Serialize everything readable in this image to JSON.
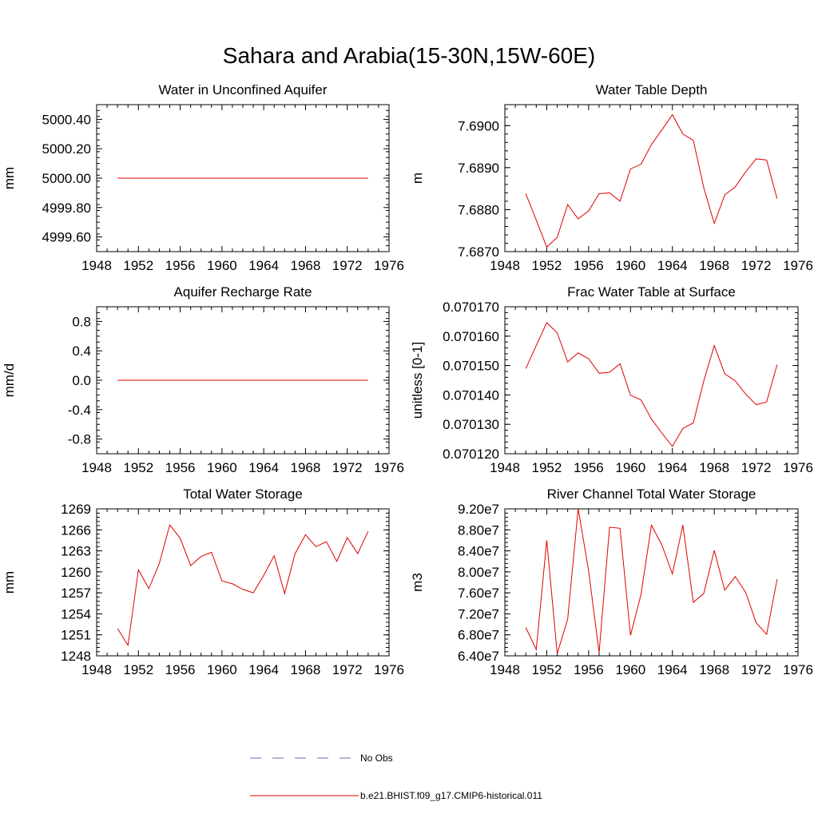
{
  "figure": {
    "title": "Sahara and Arabia(15-30N,15W-60E)"
  },
  "legend": {
    "entries": [
      {
        "name": "No Obs",
        "style": "dashed",
        "color": "#5b6fb0"
      },
      {
        "name": "b.e21.BHIST.f09_g17.CMIP6-historical.011",
        "style": "solid",
        "color": "#e00000"
      }
    ]
  },
  "chart_data": [
    {
      "type": "line",
      "title": "Water in Unconfined Aquifer",
      "ylabel": "mm",
      "xlim": [
        1948,
        1976
      ],
      "ylim": [
        4999.5,
        5000.5
      ],
      "xticks": [
        "1948",
        "1952",
        "1956",
        "1960",
        "1964",
        "1968",
        "1972",
        "1976"
      ],
      "yticks": [
        4999.6,
        4999.8,
        5000.0,
        5000.2,
        5000.4
      ],
      "ytick_labels": [
        "4999.60",
        "4999.80",
        "5000.00",
        "5000.20",
        "5000.40"
      ],
      "series": [
        {
          "color": "#e00000",
          "x": [
            1950,
            1951,
            1952,
            1953,
            1954,
            1955,
            1956,
            1957,
            1958,
            1959,
            1960,
            1961,
            1962,
            1963,
            1964,
            1965,
            1966,
            1967,
            1968,
            1969,
            1970,
            1971,
            1972,
            1973,
            1974
          ],
          "y": [
            5000,
            5000,
            5000,
            5000,
            5000,
            5000,
            5000,
            5000,
            5000,
            5000,
            5000,
            5000,
            5000,
            5000,
            5000,
            5000,
            5000,
            5000,
            5000,
            5000,
            5000,
            5000,
            5000,
            5000,
            5000
          ]
        }
      ]
    },
    {
      "type": "line",
      "title": "Water Table Depth",
      "ylabel": "m",
      "xlim": [
        1948,
        1976
      ],
      "ylim": [
        7.687,
        7.6905
      ],
      "xticks": [
        "1948",
        "1952",
        "1956",
        "1960",
        "1964",
        "1968",
        "1972",
        "1976"
      ],
      "yticks": [
        7.687,
        7.688,
        7.689,
        7.69
      ],
      "ytick_labels": [
        "7.6870",
        "7.6880",
        "7.6890",
        "7.6900"
      ],
      "series": [
        {
          "color": "#e00000",
          "x": [
            1950,
            1951,
            1952,
            1953,
            1954,
            1955,
            1956,
            1957,
            1958,
            1959,
            1960,
            1961,
            1962,
            1963,
            1964,
            1965,
            1966,
            1967,
            1968,
            1969,
            1970,
            1971,
            1972,
            1973,
            1974
          ],
          "y": [
            7.68838,
            7.68775,
            7.68711,
            7.68734,
            7.68812,
            7.68778,
            7.68797,
            7.68838,
            7.6884,
            7.6882,
            7.68897,
            7.68908,
            7.68955,
            7.6899,
            7.69026,
            7.6898,
            7.68965,
            7.68852,
            7.68767,
            7.68835,
            7.68854,
            7.6889,
            7.68921,
            7.68918,
            7.68826
          ]
        }
      ]
    },
    {
      "type": "line",
      "title": "Aquifer Recharge Rate",
      "ylabel": "mm/d",
      "xlim": [
        1948,
        1976
      ],
      "ylim": [
        -1.0,
        1.0
      ],
      "xticks": [
        "1948",
        "1952",
        "1956",
        "1960",
        "1964",
        "1968",
        "1972",
        "1976"
      ],
      "yticks": [
        -0.8,
        -0.4,
        0.0,
        0.4,
        0.8
      ],
      "ytick_labels": [
        "-0.8",
        "-0.4",
        "0.0",
        "0.4",
        "0.8"
      ],
      "series": [
        {
          "color": "#e00000",
          "x": [
            1950,
            1951,
            1952,
            1953,
            1954,
            1955,
            1956,
            1957,
            1958,
            1959,
            1960,
            1961,
            1962,
            1963,
            1964,
            1965,
            1966,
            1967,
            1968,
            1969,
            1970,
            1971,
            1972,
            1973,
            1974
          ],
          "y": [
            0,
            0,
            0,
            0,
            0,
            0,
            0,
            0,
            0,
            0,
            0,
            0,
            0,
            0,
            0,
            0,
            0,
            0,
            0,
            0,
            0,
            0,
            0,
            0,
            0
          ]
        }
      ]
    },
    {
      "type": "line",
      "title": "Frac Water Table at Surface",
      "ylabel": "unitless [0-1]",
      "xlim": [
        1948,
        1976
      ],
      "ylim": [
        0.07012,
        0.07017
      ],
      "xticks": [
        "1948",
        "1952",
        "1956",
        "1960",
        "1964",
        "1968",
        "1972",
        "1976"
      ],
      "yticks": [
        0.07012,
        0.07013,
        0.07014,
        0.07015,
        0.07016,
        0.07017
      ],
      "ytick_labels": [
        "0.070120",
        "0.070130",
        "0.070140",
        "0.070150",
        "0.070160",
        "0.070170"
      ],
      "series": [
        {
          "color": "#e00000",
          "x": [
            1950,
            1951,
            1952,
            1953,
            1954,
            1955,
            1956,
            1957,
            1958,
            1959,
            1960,
            1961,
            1962,
            1963,
            1964,
            1965,
            1966,
            1967,
            1968,
            1969,
            1970,
            1971,
            1972,
            1973,
            1974
          ],
          "y": [
            0.070149,
            0.0701568,
            0.0701646,
            0.0701611,
            0.0701512,
            0.0701543,
            0.0701523,
            0.0701474,
            0.0701477,
            0.0701506,
            0.0701399,
            0.0701383,
            0.0701318,
            0.070127,
            0.0701225,
            0.0701286,
            0.0701305,
            0.0701448,
            0.0701568,
            0.0701472,
            0.0701448,
            0.0701403,
            0.0701367,
            0.0701376,
            0.0701503
          ]
        }
      ]
    },
    {
      "type": "line",
      "title": "Total Water Storage",
      "ylabel": "mm",
      "xlim": [
        1948,
        1976
      ],
      "ylim": [
        1248,
        1269
      ],
      "xticks": [
        "1948",
        "1952",
        "1956",
        "1960",
        "1964",
        "1968",
        "1972",
        "1976"
      ],
      "yticks": [
        1248,
        1251,
        1254,
        1257,
        1260,
        1263,
        1266,
        1269
      ],
      "ytick_labels": [
        "1248",
        "1251",
        "1254",
        "1257",
        "1260",
        "1263",
        "1266",
        "1269"
      ],
      "series": [
        {
          "color": "#e00000",
          "x": [
            1950,
            1951,
            1952,
            1953,
            1954,
            1955,
            1956,
            1957,
            1958,
            1959,
            1960,
            1961,
            1962,
            1963,
            1964,
            1965,
            1966,
            1967,
            1968,
            1969,
            1970,
            1971,
            1972,
            1973,
            1974
          ],
          "y": [
            1251.9,
            1249.5,
            1260.3,
            1257.6,
            1261.2,
            1266.7,
            1264.8,
            1260.9,
            1262.2,
            1262.8,
            1258.7,
            1258.3,
            1257.5,
            1257.0,
            1259.5,
            1262.3,
            1256.9,
            1262.6,
            1265.3,
            1263.6,
            1264.3,
            1261.5,
            1264.9,
            1262.6,
            1265.8
          ]
        }
      ]
    },
    {
      "type": "line",
      "title": "River Channel Total Water Storage",
      "ylabel": "m3",
      "xlim": [
        1948,
        1976
      ],
      "ylim": [
        64000000,
        92000000
      ],
      "xticks": [
        "1948",
        "1952",
        "1956",
        "1960",
        "1964",
        "1968",
        "1972",
        "1976"
      ],
      "yticks": [
        64000000,
        68000000,
        72000000,
        76000000,
        80000000,
        84000000,
        88000000,
        92000000
      ],
      "ytick_labels": [
        "6.40e7",
        "6.80e7",
        "7.20e7",
        "7.60e7",
        "8.00e7",
        "8.40e7",
        "8.80e7",
        "9.20e7"
      ],
      "series": [
        {
          "color": "#e00000",
          "x": [
            1950,
            1951,
            1952,
            1953,
            1954,
            1955,
            1956,
            1957,
            1958,
            1959,
            1960,
            1961,
            1962,
            1963,
            1964,
            1965,
            1966,
            1967,
            1968,
            1969,
            1970,
            1971,
            1972,
            1973,
            1974
          ],
          "y": [
            69400000,
            65200000,
            86000000,
            64400000,
            71000000,
            92000000,
            80200000,
            64600000,
            88500000,
            88300000,
            67900000,
            75700000,
            88900000,
            85100000,
            79600000,
            88900000,
            74200000,
            75900000,
            84100000,
            76500000,
            79100000,
            76100000,
            70300000,
            68100000,
            78600000
          ]
        }
      ]
    }
  ]
}
